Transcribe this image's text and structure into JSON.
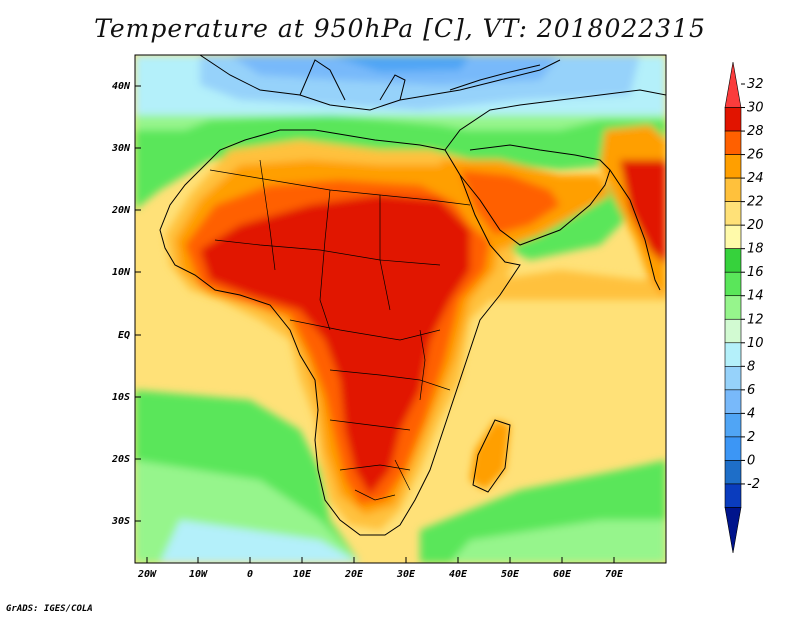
{
  "title": "Temperature at 950hPa [C], VT: 2018022315",
  "footer": "GrADS: IGES/COLA",
  "map": {
    "lat_labels": [
      "40N",
      "30N",
      "20N",
      "10N",
      "EQ",
      "10S",
      "20S",
      "30S"
    ],
    "lon_labels": [
      "20W",
      "10W",
      "0",
      "10E",
      "20E",
      "30E",
      "40E",
      "50E",
      "60E",
      "70E"
    ]
  },
  "colorbar": {
    "labels": [
      "32",
      "30",
      "28",
      "26",
      "24",
      "22",
      "20",
      "18",
      "16",
      "14",
      "12",
      "10",
      "8",
      "6",
      "4",
      "2",
      "0",
      "-2"
    ],
    "colors": [
      "#fa3c3c",
      "#e11400",
      "#ff6000",
      "#ff9f00",
      "#ffc13c",
      "#ffe178",
      "#fffaaa",
      "#36d23c",
      "#5ae65a",
      "#96f58c",
      "#d2fad2",
      "#b4f0fa",
      "#96d2fa",
      "#78b9fa",
      "#50a5f5",
      "#3c96f5",
      "#1e6ec8",
      "#0a3cbe",
      "#00148c"
    ]
  }
}
